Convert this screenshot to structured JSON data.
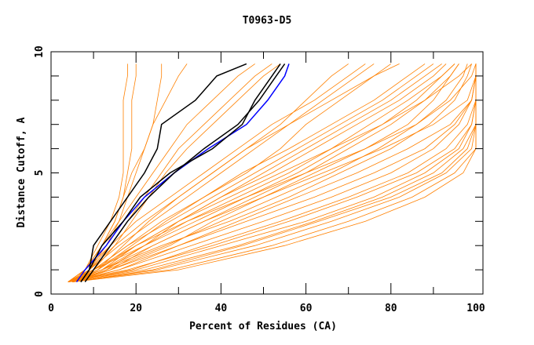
{
  "chart_data": {
    "type": "line",
    "title": "T0963-D5",
    "xlabel": "Percent of Residues (CA)",
    "ylabel": "Distance Cutoff, A",
    "xlim": [
      0,
      100
    ],
    "ylim": [
      0,
      10
    ],
    "x_ticks": [
      "0",
      "20",
      "40",
      "60",
      "80",
      "100"
    ],
    "y_ticks": [
      "0",
      "5",
      "10"
    ],
    "grid": false,
    "colors": {
      "orange": "#ff8000",
      "black": "#000000",
      "blue": "#0000ff"
    },
    "cutoffs": [
      0.5,
      1,
      2,
      3,
      4,
      5,
      6,
      7,
      8,
      9,
      9.5
    ],
    "highlight_series": [
      {
        "name": "model-blue",
        "color": "#0000ff",
        "x": [
          6,
          8,
          13,
          17,
          22,
          29,
          37,
          46,
          51,
          55,
          56
        ]
      },
      {
        "name": "model-black-1",
        "color": "#000000",
        "x": [
          7,
          9,
          12,
          17,
          21,
          28,
          38,
          45,
          48,
          52,
          54
        ]
      },
      {
        "name": "model-black-2",
        "color": "#000000",
        "x": [
          7,
          9,
          10,
          14,
          18,
          22,
          25,
          26,
          34,
          39,
          46
        ]
      },
      {
        "name": "model-black-3",
        "color": "#000000",
        "x": [
          8,
          10,
          14,
          18,
          23,
          29,
          36,
          44,
          49,
          53,
          55
        ]
      }
    ],
    "orange_series": [
      [
        4,
        18,
        38,
        56,
        72,
        86,
        95,
        99,
        100,
        100,
        100
      ],
      [
        4,
        22,
        44,
        62,
        78,
        90,
        97,
        100,
        100,
        100,
        100
      ],
      [
        5,
        25,
        48,
        66,
        82,
        93,
        99,
        100,
        100,
        100,
        100
      ],
      [
        4,
        16,
        33,
        50,
        66,
        80,
        90,
        96,
        99,
        100,
        100
      ],
      [
        5,
        20,
        40,
        60,
        76,
        88,
        96,
        99,
        100,
        100,
        100
      ],
      [
        4,
        28,
        52,
        70,
        85,
        95,
        100,
        100,
        100,
        100,
        100
      ],
      [
        5,
        30,
        55,
        74,
        88,
        97,
        100,
        100,
        100,
        100,
        100
      ],
      [
        4,
        14,
        30,
        46,
        62,
        76,
        88,
        95,
        99,
        100,
        100
      ],
      [
        5,
        24,
        45,
        63,
        80,
        92,
        98,
        100,
        100,
        100,
        100
      ],
      [
        4,
        19,
        36,
        54,
        70,
        84,
        93,
        98,
        100,
        100,
        100
      ],
      [
        5,
        12,
        24,
        36,
        48,
        60,
        70,
        80,
        88,
        94,
        96
      ],
      [
        4,
        10,
        22,
        34,
        46,
        58,
        68,
        78,
        86,
        92,
        95
      ],
      [
        5,
        13,
        27,
        40,
        53,
        66,
        77,
        86,
        93,
        97,
        98
      ],
      [
        5,
        11,
        20,
        30,
        40,
        52,
        62,
        72,
        82,
        90,
        93
      ],
      [
        4,
        12,
        26,
        42,
        56,
        68,
        80,
        89,
        95,
        98,
        99
      ],
      [
        5,
        14,
        28,
        38,
        50,
        62,
        74,
        84,
        90,
        94,
        96
      ],
      [
        4,
        10,
        18,
        28,
        38,
        48,
        58,
        68,
        78,
        86,
        90
      ],
      [
        5,
        12,
        22,
        32,
        44,
        56,
        66,
        75,
        84,
        92,
        95
      ],
      [
        5,
        9,
        16,
        24,
        32,
        40,
        48,
        56,
        64,
        72,
        76
      ],
      [
        4,
        9,
        15,
        22,
        30,
        38,
        46,
        54,
        60,
        66,
        70
      ],
      [
        5,
        10,
        18,
        26,
        36,
        46,
        54,
        60,
        68,
        76,
        80
      ],
      [
        4,
        8,
        14,
        20,
        28,
        36,
        44,
        52,
        62,
        70,
        74
      ],
      [
        5,
        9,
        14,
        18,
        22,
        26,
        30,
        36,
        42,
        48,
        52
      ],
      [
        4,
        8,
        12,
        16,
        20,
        24,
        28,
        32,
        38,
        44,
        48
      ],
      [
        5,
        8,
        12,
        15,
        17,
        18,
        19,
        19,
        19,
        20,
        20
      ],
      [
        4,
        8,
        12,
        15,
        17,
        19,
        22,
        24,
        25,
        26,
        26
      ],
      [
        5,
        9,
        13,
        16,
        18,
        20,
        22,
        24,
        27,
        30,
        32
      ],
      [
        4,
        8,
        11,
        14,
        16,
        17,
        17,
        17,
        17,
        18,
        18
      ],
      [
        5,
        10,
        15,
        19,
        23,
        27,
        32,
        38,
        44,
        50,
        54
      ],
      [
        5,
        11,
        17,
        23,
        30,
        38,
        46,
        56,
        66,
        76,
        82
      ],
      [
        4,
        12,
        20,
        30,
        42,
        54,
        66,
        78,
        88,
        96,
        99
      ],
      [
        5,
        14,
        24,
        36,
        50,
        64,
        78,
        90,
        98,
        100,
        100
      ],
      [
        5,
        16,
        30,
        44,
        58,
        72,
        84,
        94,
        99,
        100,
        100
      ],
      [
        4,
        10,
        20,
        32,
        46,
        60,
        74,
        86,
        94,
        99,
        100
      ],
      [
        5,
        13,
        22,
        30,
        40,
        50,
        60,
        70,
        80,
        88,
        92
      ],
      [
        4,
        11,
        19,
        27,
        36,
        45,
        56,
        66,
        76,
        84,
        88
      ]
    ]
  }
}
